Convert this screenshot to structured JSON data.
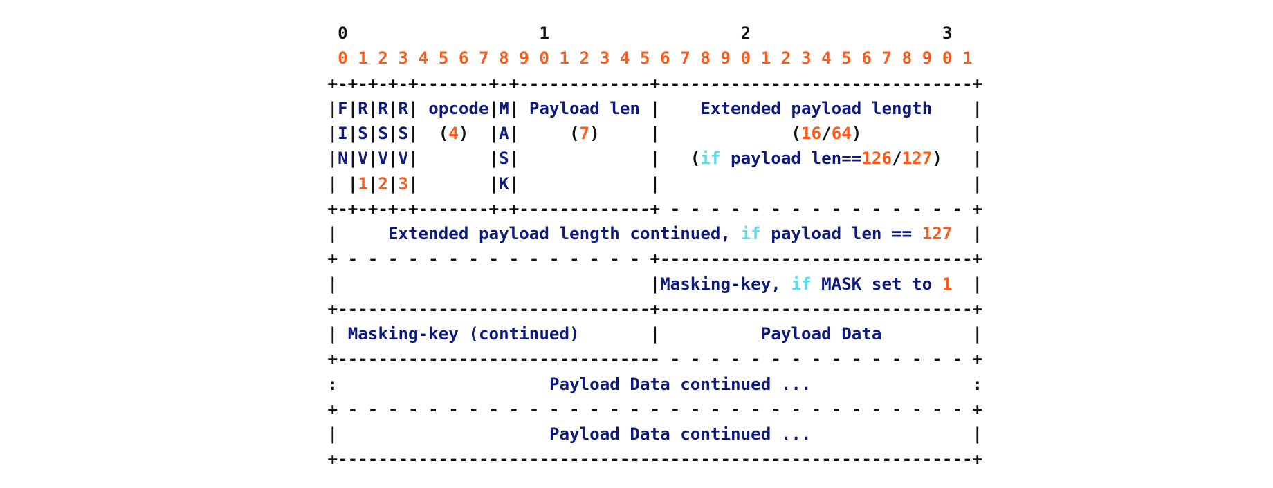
{
  "colors": {
    "plain": "#111111",
    "text": "#0e1a7a",
    "number": "#fb5a1b",
    "keyword": "#59ddee",
    "background": "#ffffff"
  },
  "lines": [
    [
      [
        "k",
        "  0                   1                   2                   3"
      ]
    ],
    [
      [
        "n",
        "  0 1 2 3 4 5 6 7 8 9 0 1 2 3 4 5 6 7 8 9 0 1 2 3 4 5 6 7 8 9 0 1"
      ]
    ],
    [
      [
        "k",
        " +-+-+-+-+-------+-+-------------+-------------------------------+"
      ]
    ],
    [
      [
        "k",
        " |"
      ],
      [
        "b",
        "F"
      ],
      [
        "k",
        "|"
      ],
      [
        "b",
        "R"
      ],
      [
        "k",
        "|"
      ],
      [
        "b",
        "R"
      ],
      [
        "k",
        "|"
      ],
      [
        "b",
        "R"
      ],
      [
        "k",
        "| "
      ],
      [
        "b",
        "opcode"
      ],
      [
        "k",
        "|"
      ],
      [
        "b",
        "M"
      ],
      [
        "k",
        "| "
      ],
      [
        "b",
        "Payload len"
      ],
      [
        "k",
        " |    "
      ],
      [
        "b",
        "Extended payload length"
      ],
      [
        "k",
        "    |"
      ]
    ],
    [
      [
        "k",
        " |"
      ],
      [
        "b",
        "I"
      ],
      [
        "k",
        "|"
      ],
      [
        "b",
        "S"
      ],
      [
        "k",
        "|"
      ],
      [
        "b",
        "S"
      ],
      [
        "k",
        "|"
      ],
      [
        "b",
        "S"
      ],
      [
        "k",
        "|  ("
      ],
      [
        "n",
        "4"
      ],
      [
        "k",
        ")  |"
      ],
      [
        "b",
        "A"
      ],
      [
        "k",
        "|     ("
      ],
      [
        "n",
        "7"
      ],
      [
        "k",
        ")     |             ("
      ],
      [
        "n",
        "16"
      ],
      [
        "k",
        "/"
      ],
      [
        "n",
        "64"
      ],
      [
        "k",
        ")           |"
      ]
    ],
    [
      [
        "k",
        " |"
      ],
      [
        "b",
        "N"
      ],
      [
        "k",
        "|"
      ],
      [
        "b",
        "V"
      ],
      [
        "k",
        "|"
      ],
      [
        "b",
        "V"
      ],
      [
        "k",
        "|"
      ],
      [
        "b",
        "V"
      ],
      [
        "k",
        "|       |"
      ],
      [
        "b",
        "S"
      ],
      [
        "k",
        "|             |   ("
      ],
      [
        "c",
        "if"
      ],
      [
        "b",
        " payload len=="
      ],
      [
        "n",
        "126"
      ],
      [
        "k",
        "/"
      ],
      [
        "n",
        "127"
      ],
      [
        "k",
        ")   |"
      ]
    ],
    [
      [
        "k",
        " | |"
      ],
      [
        "n",
        "1"
      ],
      [
        "k",
        "|"
      ],
      [
        "n",
        "2"
      ],
      [
        "k",
        "|"
      ],
      [
        "n",
        "3"
      ],
      [
        "k",
        "|       |"
      ],
      [
        "b",
        "K"
      ],
      [
        "k",
        "|             |                               |"
      ]
    ],
    [
      [
        "k",
        " +-+-+-+-+-------+-+-------------+ - - - - - - - - - - - - - - - +"
      ]
    ],
    [
      [
        "k",
        " |     "
      ],
      [
        "b",
        "Extended payload length continued, "
      ],
      [
        "c",
        "if"
      ],
      [
        "b",
        " payload len == "
      ],
      [
        "n",
        "127"
      ],
      [
        "k",
        "  |"
      ]
    ],
    [
      [
        "k",
        " + - - - - - - - - - - - - - - - +-------------------------------+"
      ]
    ],
    [
      [
        "k",
        " |                               |"
      ],
      [
        "b",
        "Masking-key, "
      ],
      [
        "c",
        "if"
      ],
      [
        "b",
        " MASK set to "
      ],
      [
        "n",
        "1"
      ],
      [
        "k",
        "  |"
      ]
    ],
    [
      [
        "k",
        " +-------------------------------+-------------------------------+"
      ]
    ],
    [
      [
        "k",
        " | "
      ],
      [
        "b",
        "Masking-key (continued)"
      ],
      [
        "k",
        "       |          "
      ],
      [
        "b",
        "Payload Data"
      ],
      [
        "k",
        "         |"
      ]
    ],
    [
      [
        "k",
        " +-------------------------------- - - - - - - - - - - - - - - - +"
      ]
    ],
    [
      [
        "k",
        " :                     "
      ],
      [
        "b",
        "Payload Data continued ..."
      ],
      [
        "k",
        "                :"
      ]
    ],
    [
      [
        "k",
        " + - - - - - - - - - - - - - - - - - - - - - - - - - - - - - - - +"
      ]
    ],
    [
      [
        "k",
        " |                     "
      ],
      [
        "b",
        "Payload Data continued ..."
      ],
      [
        "k",
        "                |"
      ]
    ],
    [
      [
        "k",
        " +---------------------------------------------------------------+"
      ]
    ]
  ]
}
